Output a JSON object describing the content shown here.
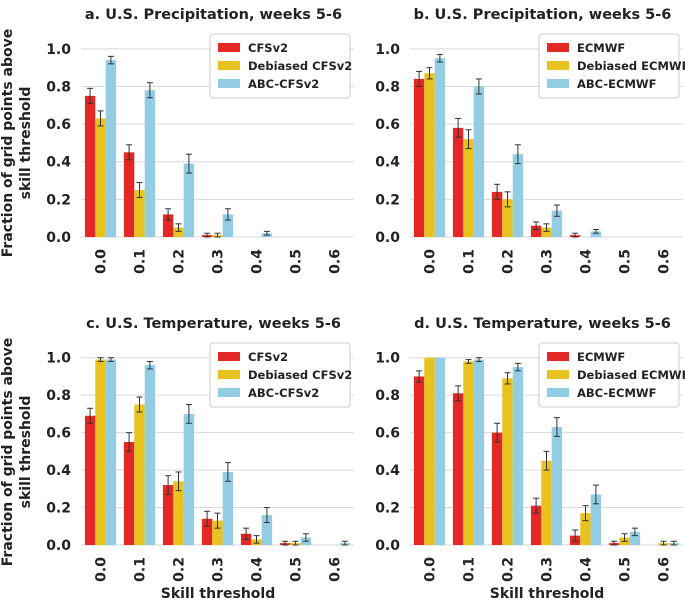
{
  "figure": {
    "ylabel_line1": "Fraction of grid points above",
    "ylabel_line2": "skill threshold",
    "xlabel": "Skill threshold",
    "colors": {
      "red": "#e32826",
      "yellow": "#e8c21f",
      "blue": "#93cde3"
    }
  },
  "chart_data": [
    {
      "type": "bar",
      "title": "a. U.S. Precipitation, weeks 5-6",
      "xlabel": "Skill threshold",
      "ylabel": "Fraction of grid points above skill threshold",
      "categories": [
        "0.0",
        "0.1",
        "0.2",
        "0.3",
        "0.4",
        "0.5",
        "0.6"
      ],
      "ylim": [
        0,
        1.1
      ],
      "yticks": [
        "0.0",
        "0.2",
        "0.4",
        "0.6",
        "0.8",
        "1.0"
      ],
      "legend_position": "top-right",
      "series": [
        {
          "name": "CFSv2",
          "color": "#e32826",
          "values": [
            0.75,
            0.45,
            0.12,
            0.01,
            0.0,
            0.0,
            0.0
          ],
          "errors": [
            0.04,
            0.04,
            0.03,
            0.01,
            0.0,
            0.0,
            0.0
          ]
        },
        {
          "name": "Debiased CFSv2",
          "color": "#e8c21f",
          "values": [
            0.63,
            0.25,
            0.05,
            0.01,
            0.0,
            0.0,
            0.0
          ],
          "errors": [
            0.04,
            0.04,
            0.02,
            0.01,
            0.0,
            0.0,
            0.0
          ]
        },
        {
          "name": "ABC-CFSv2",
          "color": "#93cde3",
          "values": [
            0.94,
            0.78,
            0.39,
            0.12,
            0.02,
            0.0,
            0.0
          ],
          "errors": [
            0.02,
            0.04,
            0.05,
            0.03,
            0.01,
            0.0,
            0.0
          ]
        }
      ]
    },
    {
      "type": "bar",
      "title": "b. U.S. Precipitation, weeks 5-6",
      "xlabel": "Skill threshold",
      "ylabel": "Fraction of grid points above skill threshold",
      "categories": [
        "0.0",
        "0.1",
        "0.2",
        "0.3",
        "0.4",
        "0.5",
        "0.6"
      ],
      "ylim": [
        0,
        1.1
      ],
      "yticks": [
        "0.0",
        "0.2",
        "0.4",
        "0.6",
        "0.8",
        "1.0"
      ],
      "legend_position": "top-right",
      "series": [
        {
          "name": "ECMWF",
          "color": "#e32826",
          "values": [
            0.84,
            0.58,
            0.24,
            0.06,
            0.01,
            0.0,
            0.0
          ],
          "errors": [
            0.04,
            0.05,
            0.04,
            0.02,
            0.01,
            0.0,
            0.0
          ]
        },
        {
          "name": "Debiased ECMWF",
          "color": "#e8c21f",
          "values": [
            0.87,
            0.52,
            0.2,
            0.05,
            0.0,
            0.0,
            0.0
          ],
          "errors": [
            0.03,
            0.05,
            0.04,
            0.02,
            0.0,
            0.0,
            0.0
          ]
        },
        {
          "name": "ABC-ECMWF",
          "color": "#93cde3",
          "values": [
            0.95,
            0.8,
            0.44,
            0.14,
            0.03,
            0.0,
            0.0
          ],
          "errors": [
            0.02,
            0.04,
            0.05,
            0.03,
            0.01,
            0.0,
            0.0
          ]
        }
      ]
    },
    {
      "type": "bar",
      "title": "c. U.S. Temperature, weeks 5-6",
      "xlabel": "Skill threshold",
      "ylabel": "Fraction of grid points above skill threshold",
      "categories": [
        "0.0",
        "0.1",
        "0.2",
        "0.3",
        "0.4",
        "0.5",
        "0.6"
      ],
      "ylim": [
        0,
        1.1
      ],
      "yticks": [
        "0.0",
        "0.2",
        "0.4",
        "0.6",
        "0.8",
        "1.0"
      ],
      "legend_position": "top-right",
      "series": [
        {
          "name": "CFSv2",
          "color": "#e32826",
          "values": [
            0.69,
            0.55,
            0.32,
            0.14,
            0.06,
            0.01,
            0.0
          ],
          "errors": [
            0.04,
            0.05,
            0.05,
            0.04,
            0.03,
            0.01,
            0.0
          ]
        },
        {
          "name": "Debiased CFSv2",
          "color": "#e8c21f",
          "values": [
            0.99,
            0.75,
            0.34,
            0.13,
            0.03,
            0.01,
            0.0
          ],
          "errors": [
            0.01,
            0.04,
            0.05,
            0.04,
            0.02,
            0.01,
            0.0
          ]
        },
        {
          "name": "ABC-CFSv2",
          "color": "#93cde3",
          "values": [
            0.99,
            0.96,
            0.7,
            0.39,
            0.16,
            0.04,
            0.01
          ],
          "errors": [
            0.01,
            0.02,
            0.05,
            0.05,
            0.04,
            0.02,
            0.01
          ]
        }
      ]
    },
    {
      "type": "bar",
      "title": "d. U.S. Temperature, weeks 5-6",
      "xlabel": "Skill threshold",
      "ylabel": "Fraction of grid points above skill threshold",
      "categories": [
        "0.0",
        "0.1",
        "0.2",
        "0.3",
        "0.4",
        "0.5",
        "0.6"
      ],
      "ylim": [
        0,
        1.1
      ],
      "yticks": [
        "0.0",
        "0.2",
        "0.4",
        "0.6",
        "0.8",
        "1.0"
      ],
      "legend_position": "top-right",
      "series": [
        {
          "name": "ECMWF",
          "color": "#e32826",
          "values": [
            0.9,
            0.81,
            0.6,
            0.21,
            0.05,
            0.01,
            0.0
          ],
          "errors": [
            0.03,
            0.04,
            0.05,
            0.04,
            0.03,
            0.01,
            0.0
          ]
        },
        {
          "name": "Debiased ECMWF",
          "color": "#e8c21f",
          "values": [
            1.0,
            0.98,
            0.89,
            0.45,
            0.17,
            0.04,
            0.01
          ],
          "errors": [
            0.0,
            0.01,
            0.03,
            0.05,
            0.04,
            0.02,
            0.01
          ]
        },
        {
          "name": "ABC-ECMWF",
          "color": "#93cde3",
          "values": [
            1.0,
            0.99,
            0.95,
            0.63,
            0.27,
            0.07,
            0.01
          ],
          "errors": [
            0.0,
            0.01,
            0.02,
            0.05,
            0.05,
            0.02,
            0.01
          ]
        }
      ]
    }
  ]
}
